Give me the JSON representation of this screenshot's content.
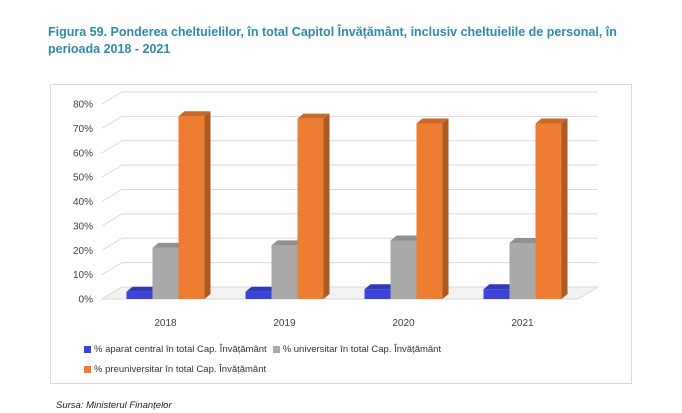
{
  "figure": {
    "title": "Figura 59. Ponderea cheltuielilor, în total Capitol Învățământ, inclusiv cheltuielile de personal, în perioada 2018 - 2021",
    "source": "Sursa: Ministerul Finanțelor"
  },
  "chart_data": {
    "type": "bar",
    "style": "3d-clustered-column",
    "categories": [
      "2018",
      "2019",
      "2020",
      "2021"
    ],
    "series": [
      {
        "name": "% aparat central în total Cap. Învățământ",
        "color": "#3b43d9",
        "values": [
          3,
          3,
          4,
          4
        ]
      },
      {
        "name": "% universitar în total Cap. Învățământ",
        "color": "#a9a9a9",
        "values": [
          21,
          22,
          24,
          23
        ]
      },
      {
        "name": "% preuniversitar în total Cap. Învățământ",
        "color": "#ed7d31",
        "values": [
          75,
          74,
          72,
          72
        ]
      }
    ],
    "y_ticks": [
      "0%",
      "10%",
      "20%",
      "30%",
      "40%",
      "50%",
      "60%",
      "70%",
      "80%"
    ],
    "ylim": [
      0,
      80
    ],
    "grid": true,
    "legend_position": "bottom"
  }
}
